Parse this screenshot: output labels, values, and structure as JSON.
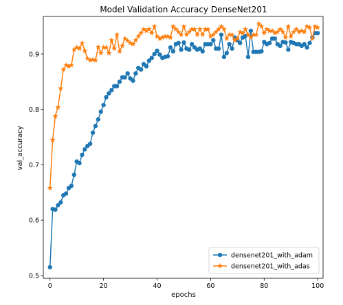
{
  "chart_data": {
    "type": "line",
    "title": "Model Validation Accuracy DenseNet201",
    "xlabel": "epochs",
    "ylabel": "val_accuracy",
    "xlim": [
      -2.5,
      102
    ],
    "ylim": [
      0.495,
      0.968
    ],
    "xticks": [
      0,
      20,
      40,
      60,
      80,
      100
    ],
    "yticks": [
      0.5,
      0.6,
      0.7,
      0.8,
      0.9
    ],
    "xtick_labels": [
      "0",
      "20",
      "40",
      "60",
      "80",
      "100"
    ],
    "ytick_labels": [
      "0.5",
      "0.6",
      "0.7",
      "0.8",
      "0.9"
    ],
    "grid": false,
    "legend_position": "lower-right",
    "series": [
      {
        "name": "densenet201_with_adam",
        "color": "#1f77b4",
        "marker": "circle",
        "values": [
          0.515,
          0.62,
          0.619,
          0.627,
          0.632,
          0.645,
          0.648,
          0.658,
          0.662,
          0.682,
          0.706,
          0.703,
          0.718,
          0.728,
          0.734,
          0.738,
          0.758,
          0.77,
          0.782,
          0.796,
          0.808,
          0.822,
          0.829,
          0.835,
          0.842,
          0.842,
          0.85,
          0.858,
          0.858,
          0.865,
          0.856,
          0.852,
          0.865,
          0.875,
          0.872,
          0.882,
          0.878,
          0.888,
          0.893,
          0.9,
          0.906,
          0.899,
          0.893,
          0.895,
          0.896,
          0.912,
          0.905,
          0.918,
          0.92,
          0.908,
          0.921,
          0.91,
          0.908,
          0.918,
          0.912,
          0.908,
          0.91,
          0.905,
          0.918,
          0.918,
          0.918,
          0.925,
          0.91,
          0.91,
          0.935,
          0.895,
          0.902,
          0.918,
          0.91,
          0.93,
          0.925,
          0.92,
          0.93,
          0.933,
          0.895,
          0.942,
          0.904,
          0.904,
          0.904,
          0.905,
          0.922,
          0.918,
          0.92,
          0.928,
          0.928,
          0.918,
          0.915,
          0.922,
          0.921,
          0.908,
          0.922,
          0.92,
          0.918,
          0.918,
          0.915,
          0.918,
          0.912,
          0.92,
          0.93,
          0.938,
          0.938
        ]
      },
      {
        "name": "densenet201_with_adas",
        "color": "#ff7f0e",
        "marker": "star",
        "values": [
          0.658,
          0.745,
          0.788,
          0.804,
          0.838,
          0.872,
          0.88,
          0.878,
          0.88,
          0.908,
          0.912,
          0.91,
          0.92,
          0.906,
          0.892,
          0.889,
          0.89,
          0.889,
          0.913,
          0.902,
          0.912,
          0.912,
          0.902,
          0.925,
          0.91,
          0.935,
          0.905,
          0.915,
          0.928,
          0.924,
          0.92,
          0.918,
          0.925,
          0.932,
          0.938,
          0.945,
          0.942,
          0.945,
          0.938,
          0.95,
          0.932,
          0.928,
          0.93,
          0.932,
          0.932,
          0.93,
          0.95,
          0.945,
          0.94,
          0.935,
          0.95,
          0.935,
          0.94,
          0.945,
          0.945,
          0.935,
          0.945,
          0.935,
          0.945,
          0.945,
          0.932,
          0.935,
          0.94,
          0.945,
          0.95,
          0.945,
          0.928,
          0.935,
          0.935,
          0.925,
          0.928,
          0.94,
          0.938,
          0.945,
          0.935,
          0.93,
          0.935,
          0.935,
          0.955,
          0.95,
          0.938,
          0.945,
          0.942,
          0.942,
          0.938,
          0.94,
          0.945,
          0.94,
          0.93,
          0.95,
          0.932,
          0.94,
          0.945,
          0.94,
          0.942,
          0.94,
          0.95,
          0.948,
          0.928,
          0.95,
          0.948
        ]
      }
    ]
  }
}
